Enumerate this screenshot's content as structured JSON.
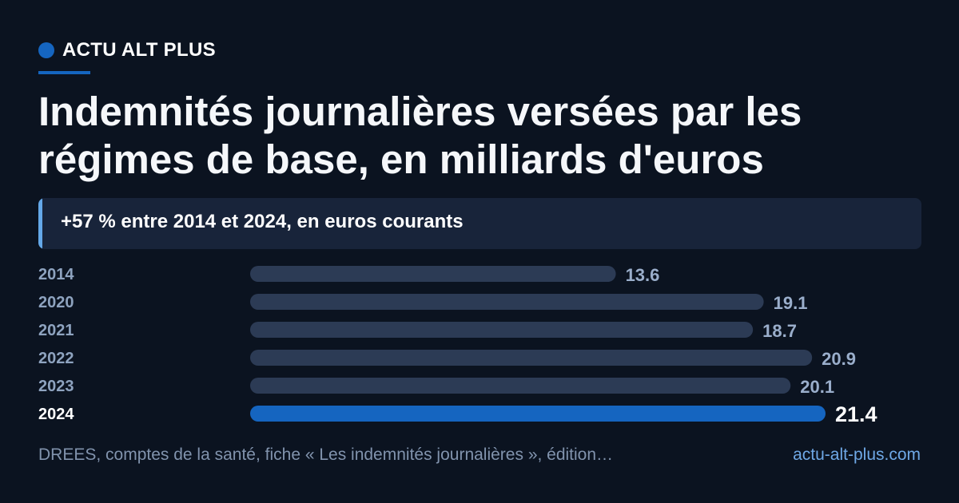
{
  "brand": {
    "name": "ACTU ALT PLUS"
  },
  "title": "Indemnités journalières versées par les régimes de base, en milliards d'euros",
  "subtitle": "+57 % entre 2014 et 2024, en euros courants",
  "source": "DREES, comptes de la santé, fiche « Les indemnités journalières », édition…",
  "site": "actu-alt-plus.com",
  "colors": {
    "background": "#0b1320",
    "bar": "#2c3b55",
    "highlight": "#1565c0",
    "accent": "#64a8e8"
  },
  "chart_data": {
    "type": "bar",
    "orientation": "horizontal",
    "categories": [
      "2014",
      "2020",
      "2021",
      "2022",
      "2023",
      "2024"
    ],
    "values": [
      13.6,
      19.1,
      18.7,
      20.9,
      20.1,
      21.4
    ],
    "value_labels": [
      "13.6",
      "19.1",
      "18.7",
      "20.9",
      "20.1",
      "21.4"
    ],
    "highlight": "2024",
    "grid": false,
    "legend": "none"
  }
}
